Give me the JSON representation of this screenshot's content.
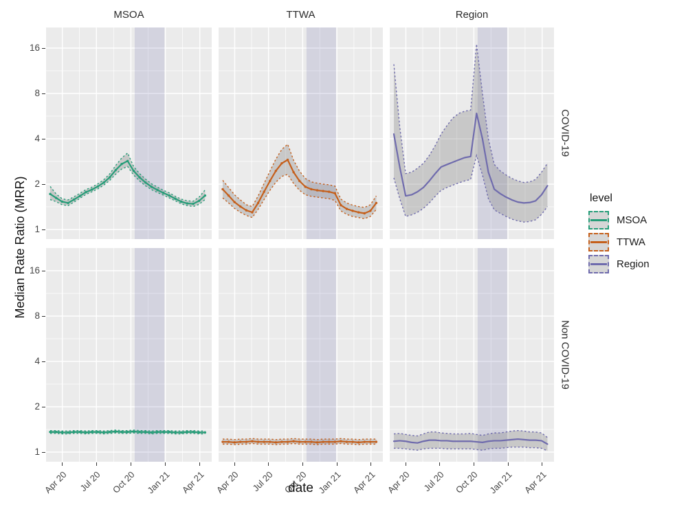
{
  "figure": {
    "x_axis_title": "date",
    "y_axis_title": "Median Rate Ratio (MRR)"
  },
  "legend": {
    "title": "level",
    "items": [
      {
        "label": "MSOA",
        "color": "#259d78"
      },
      {
        "label": "TTWA",
        "color": "#c55f1b"
      },
      {
        "label": "Region",
        "color": "#6f6bad"
      }
    ]
  },
  "chart_data": {
    "type": "line",
    "title": "",
    "xlabel": "date",
    "ylabel": "Median Rate Ratio (MRR)",
    "y_scale": "log2",
    "grid": true,
    "facet_columns": [
      "MSOA",
      "TTWA",
      "Region"
    ],
    "facet_rows": [
      "COVID-19",
      "Non COVID-19"
    ],
    "x_tick_labels": [
      "Apr 20",
      "Jul 20",
      "Oct 20",
      "Jan 21",
      "Apr 21"
    ],
    "y_tick_labels": [
      "1",
      "2",
      "4",
      "8",
      "16"
    ],
    "y_ticks": [
      1,
      2,
      4,
      8,
      16
    ],
    "ylim": [
      0.86,
      22
    ],
    "colors": {
      "MSOA": "#259d78",
      "TTWA": "#c55f1b",
      "Region": "#6f6bad"
    },
    "panel_background": "#ebebeb",
    "ribbon_fill": "rgba(127,127,127,0.32)",
    "highlight_band": {
      "x_start_frac": 0.535,
      "x_end_frac": 0.715,
      "color": "rgba(108,103,170,0.18)"
    },
    "panels": [
      {
        "row": "COVID-19",
        "col": "MSOA",
        "level": "MSOA",
        "markers": true,
        "mid": [
          1.72,
          1.62,
          1.53,
          1.5,
          1.58,
          1.67,
          1.77,
          1.84,
          1.93,
          2.05,
          2.22,
          2.48,
          2.72,
          2.85,
          2.45,
          2.22,
          2.05,
          1.92,
          1.83,
          1.75,
          1.68,
          1.6,
          1.53,
          1.49,
          1.48,
          1.55,
          1.68
        ],
        "lo": [
          1.58,
          1.53,
          1.46,
          1.44,
          1.52,
          1.61,
          1.71,
          1.78,
          1.86,
          1.97,
          2.12,
          2.33,
          2.52,
          2.62,
          2.3,
          2.1,
          1.95,
          1.84,
          1.76,
          1.69,
          1.62,
          1.55,
          1.48,
          1.44,
          1.42,
          1.47,
          1.58
        ],
        "hi": [
          1.93,
          1.72,
          1.6,
          1.57,
          1.65,
          1.74,
          1.84,
          1.91,
          2.01,
          2.14,
          2.34,
          2.66,
          2.98,
          3.22,
          2.62,
          2.35,
          2.16,
          2.01,
          1.91,
          1.82,
          1.75,
          1.66,
          1.59,
          1.55,
          1.54,
          1.64,
          1.83
        ]
      },
      {
        "row": "COVID-19",
        "col": "TTWA",
        "level": "TTWA",
        "markers": true,
        "mid": [
          1.85,
          1.68,
          1.52,
          1.42,
          1.34,
          1.3,
          1.5,
          1.78,
          2.1,
          2.45,
          2.75,
          2.9,
          2.4,
          2.1,
          1.92,
          1.85,
          1.82,
          1.8,
          1.78,
          1.74,
          1.45,
          1.37,
          1.33,
          1.3,
          1.28,
          1.33,
          1.5
        ],
        "lo": [
          1.62,
          1.5,
          1.38,
          1.3,
          1.24,
          1.2,
          1.36,
          1.58,
          1.82,
          2.06,
          2.25,
          2.32,
          2.02,
          1.82,
          1.7,
          1.66,
          1.64,
          1.62,
          1.6,
          1.56,
          1.33,
          1.26,
          1.22,
          1.2,
          1.18,
          1.22,
          1.36
        ],
        "hi": [
          2.12,
          1.9,
          1.7,
          1.57,
          1.46,
          1.42,
          1.67,
          2.02,
          2.44,
          2.93,
          3.4,
          3.68,
          2.88,
          2.44,
          2.18,
          2.07,
          2.03,
          2.0,
          1.98,
          1.94,
          1.59,
          1.5,
          1.45,
          1.42,
          1.4,
          1.46,
          1.67
        ]
      },
      {
        "row": "COVID-19",
        "col": "Region",
        "level": "Region",
        "markers": false,
        "mid": [
          4.3,
          2.6,
          1.67,
          1.7,
          1.78,
          1.9,
          2.1,
          2.35,
          2.6,
          2.7,
          2.8,
          2.9,
          3.0,
          3.05,
          5.9,
          4.0,
          2.4,
          1.85,
          1.73,
          1.64,
          1.57,
          1.52,
          1.5,
          1.51,
          1.55,
          1.7,
          1.95
        ],
        "lo": [
          2.2,
          1.6,
          1.22,
          1.25,
          1.3,
          1.38,
          1.5,
          1.66,
          1.82,
          1.9,
          1.97,
          2.04,
          2.1,
          2.15,
          3.1,
          2.3,
          1.6,
          1.35,
          1.28,
          1.22,
          1.17,
          1.14,
          1.12,
          1.13,
          1.16,
          1.26,
          1.42
        ],
        "hi": [
          12.5,
          4.8,
          2.35,
          2.4,
          2.55,
          2.75,
          3.1,
          3.6,
          4.3,
          4.9,
          5.5,
          5.9,
          6.1,
          6.2,
          17.0,
          8.0,
          4.0,
          2.7,
          2.45,
          2.3,
          2.18,
          2.1,
          2.05,
          2.07,
          2.15,
          2.4,
          2.75
        ]
      },
      {
        "row": "Non COVID-19",
        "col": "MSOA",
        "level": "MSOA",
        "markers": true,
        "mid": [
          1.36,
          1.36,
          1.35,
          1.35,
          1.36,
          1.36,
          1.35,
          1.36,
          1.36,
          1.35,
          1.36,
          1.37,
          1.36,
          1.36,
          1.37,
          1.36,
          1.36,
          1.35,
          1.36,
          1.36,
          1.36,
          1.35,
          1.35,
          1.36,
          1.36,
          1.35,
          1.35
        ],
        "lo": [
          1.33,
          1.33,
          1.32,
          1.32,
          1.33,
          1.33,
          1.32,
          1.33,
          1.33,
          1.32,
          1.33,
          1.34,
          1.33,
          1.33,
          1.34,
          1.33,
          1.33,
          1.32,
          1.33,
          1.33,
          1.33,
          1.32,
          1.32,
          1.33,
          1.33,
          1.32,
          1.32
        ],
        "hi": [
          1.39,
          1.39,
          1.38,
          1.38,
          1.39,
          1.39,
          1.38,
          1.39,
          1.39,
          1.38,
          1.39,
          1.4,
          1.39,
          1.39,
          1.4,
          1.39,
          1.39,
          1.38,
          1.39,
          1.39,
          1.39,
          1.38,
          1.38,
          1.39,
          1.39,
          1.38,
          1.38
        ]
      },
      {
        "row": "Non COVID-19",
        "col": "TTWA",
        "level": "TTWA",
        "markers": true,
        "mid": [
          1.17,
          1.17,
          1.16,
          1.17,
          1.17,
          1.18,
          1.17,
          1.17,
          1.17,
          1.16,
          1.17,
          1.17,
          1.18,
          1.17,
          1.17,
          1.17,
          1.16,
          1.17,
          1.17,
          1.17,
          1.18,
          1.17,
          1.17,
          1.16,
          1.17,
          1.17,
          1.17
        ],
        "lo": [
          1.13,
          1.13,
          1.12,
          1.13,
          1.13,
          1.14,
          1.13,
          1.13,
          1.13,
          1.12,
          1.13,
          1.13,
          1.14,
          1.13,
          1.13,
          1.13,
          1.12,
          1.13,
          1.13,
          1.13,
          1.14,
          1.13,
          1.13,
          1.12,
          1.13,
          1.13,
          1.13
        ],
        "hi": [
          1.22,
          1.22,
          1.21,
          1.22,
          1.22,
          1.23,
          1.22,
          1.22,
          1.22,
          1.21,
          1.22,
          1.22,
          1.23,
          1.22,
          1.22,
          1.22,
          1.21,
          1.22,
          1.22,
          1.22,
          1.23,
          1.22,
          1.22,
          1.21,
          1.22,
          1.22,
          1.22
        ]
      },
      {
        "row": "Non COVID-19",
        "col": "Region",
        "level": "Region",
        "markers": false,
        "mid": [
          1.18,
          1.19,
          1.18,
          1.16,
          1.15,
          1.18,
          1.2,
          1.2,
          1.19,
          1.19,
          1.18,
          1.18,
          1.18,
          1.18,
          1.17,
          1.16,
          1.18,
          1.19,
          1.19,
          1.2,
          1.21,
          1.22,
          1.21,
          1.2,
          1.2,
          1.19,
          1.13
        ],
        "lo": [
          1.06,
          1.06,
          1.05,
          1.04,
          1.03,
          1.05,
          1.06,
          1.06,
          1.06,
          1.05,
          1.05,
          1.05,
          1.05,
          1.05,
          1.04,
          1.03,
          1.05,
          1.06,
          1.06,
          1.07,
          1.08,
          1.08,
          1.08,
          1.07,
          1.07,
          1.06,
          1.02
        ],
        "hi": [
          1.32,
          1.33,
          1.31,
          1.29,
          1.28,
          1.32,
          1.36,
          1.36,
          1.34,
          1.33,
          1.32,
          1.32,
          1.32,
          1.33,
          1.31,
          1.29,
          1.32,
          1.34,
          1.34,
          1.36,
          1.38,
          1.39,
          1.38,
          1.36,
          1.36,
          1.34,
          1.25
        ]
      }
    ]
  }
}
